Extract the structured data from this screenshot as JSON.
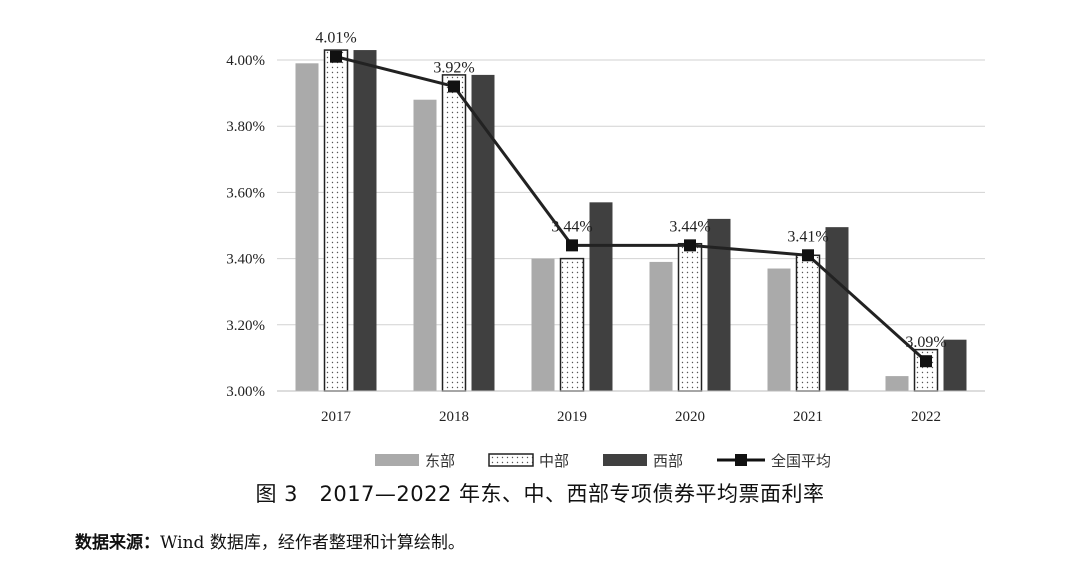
{
  "chart_data": {
    "type": "bar",
    "categories": [
      "2017",
      "2018",
      "2019",
      "2020",
      "2021",
      "2022"
    ],
    "series": [
      {
        "name": "东部",
        "values": [
          3.99,
          3.88,
          3.4,
          3.39,
          3.37,
          3.045
        ],
        "color": "#aaaaaa",
        "pattern": "solid"
      },
      {
        "name": "中部",
        "values": [
          4.03,
          3.955,
          3.4,
          3.445,
          3.41,
          3.125
        ],
        "color": "#ffffff",
        "pattern": "dotted"
      },
      {
        "name": "西部",
        "values": [
          4.03,
          3.955,
          3.57,
          3.52,
          3.495,
          3.155
        ],
        "color": "#404040",
        "pattern": "solid"
      }
    ],
    "line_series": {
      "name": "全国平均",
      "values": [
        4.01,
        3.92,
        3.44,
        3.44,
        3.41,
        3.09
      ],
      "color": "#222222",
      "marker": "square"
    },
    "data_labels": [
      "4.01%",
      "3.92%",
      "3.44%",
      "3.44%",
      "3.41%",
      "3.09%"
    ],
    "yticks": [
      "3.00%",
      "3.20%",
      "3.40%",
      "3.60%",
      "3.80%",
      "4.00%"
    ],
    "ytick_values": [
      3.0,
      3.2,
      3.4,
      3.6,
      3.8,
      4.0
    ],
    "ylim": [
      3.0,
      4.0
    ],
    "grid": true,
    "legend_position": "bottom"
  },
  "caption": "图 3　2017—2022 年东、中、西部专项债券平均票面利率",
  "source": {
    "label": "数据来源：",
    "text": "Wind 数据库，经作者整理和计算绘制。"
  }
}
